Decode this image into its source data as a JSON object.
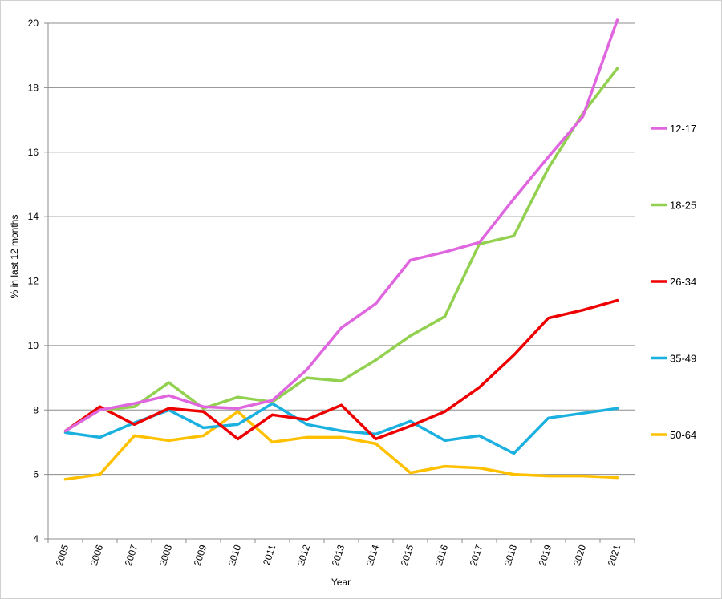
{
  "chart_data": {
    "type": "line",
    "title": "",
    "xlabel": "Year",
    "ylabel": "% in last 12 months",
    "ylim": [
      4,
      20
    ],
    "yticks": [
      4,
      6,
      8,
      10,
      12,
      14,
      16,
      18,
      20
    ],
    "grid": "horizontal",
    "legend": "right",
    "categories": [
      "2005",
      "2006",
      "2007",
      "2008",
      "2009",
      "2010",
      "2011",
      "2012",
      "2013",
      "2014",
      "2015",
      "2016",
      "2017",
      "2018",
      "2019",
      "2020",
      "2021"
    ],
    "series": [
      {
        "name": "12-17",
        "color": "#e066e0",
        "values": [
          7.35,
          8.0,
          8.2,
          8.45,
          8.1,
          8.05,
          8.3,
          9.25,
          10.55,
          11.3,
          12.65,
          12.9,
          13.2,
          14.55,
          15.85,
          17.1,
          20.1
        ]
      },
      {
        "name": "18-25",
        "color": "#92d050",
        "values": [
          7.35,
          8.0,
          8.1,
          8.85,
          8.05,
          8.4,
          8.25,
          9.0,
          8.9,
          9.55,
          10.3,
          10.9,
          13.15,
          13.4,
          15.5,
          17.2,
          18.6
        ]
      },
      {
        "name": "26-34",
        "color": "#ee0000",
        "values": [
          7.35,
          8.1,
          7.55,
          8.05,
          7.95,
          7.1,
          7.85,
          7.7,
          8.15,
          7.1,
          7.5,
          7.95,
          8.7,
          9.7,
          10.85,
          11.1,
          11.4
        ]
      },
      {
        "name": "35-49",
        "color": "#1ab0e0",
        "values": [
          7.3,
          7.15,
          7.6,
          8.0,
          7.45,
          7.55,
          8.2,
          7.55,
          7.35,
          7.25,
          7.65,
          7.05,
          7.2,
          6.65,
          7.75,
          7.9,
          8.05
        ]
      },
      {
        "name": "50-64",
        "color": "#ffc000",
        "values": [
          5.85,
          6.0,
          7.2,
          7.05,
          7.2,
          7.95,
          7.0,
          7.15,
          7.15,
          6.95,
          6.05,
          6.25,
          6.2,
          6.0,
          5.95,
          5.95,
          5.9
        ]
      }
    ]
  }
}
